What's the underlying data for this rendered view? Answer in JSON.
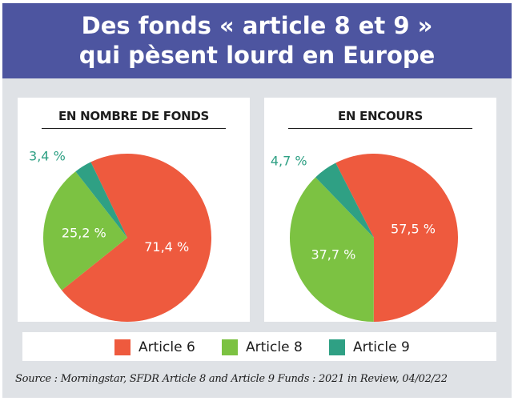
{
  "title": {
    "line1": "Des fonds « article 8 et 9 »",
    "line2": "qui pèsent lourd en Europe"
  },
  "colors": {
    "header_bg": "#4d55a0",
    "article6": "#ee5a3e",
    "article8": "#7cc242",
    "article9": "#2fa084",
    "label_article9": "#2fa084"
  },
  "chart_data": [
    {
      "type": "pie",
      "title": "EN NOMBRE DE FONDS",
      "categories": [
        "Article 6",
        "Article 8",
        "Article 9"
      ],
      "values": [
        71.4,
        25.2,
        3.4
      ],
      "labels": [
        "71,4 %",
        "25,2 %",
        "3,4 %"
      ]
    },
    {
      "type": "pie",
      "title": "EN ENCOURS",
      "categories": [
        "Article 6",
        "Article 8",
        "Article 9"
      ],
      "values": [
        57.5,
        37.7,
        4.7
      ],
      "labels": [
        "57,5 %",
        "37,7 %",
        "4,7 %"
      ]
    }
  ],
  "legend": [
    {
      "label": "Article 6",
      "color": "#ee5a3e"
    },
    {
      "label": "Article 8",
      "color": "#7cc242"
    },
    {
      "label": "Article 9",
      "color": "#2fa084"
    }
  ],
  "source": "Source : Morningstar, SFDR Article 8 and Article 9 Funds : 2021 in Review, 04/02/22"
}
